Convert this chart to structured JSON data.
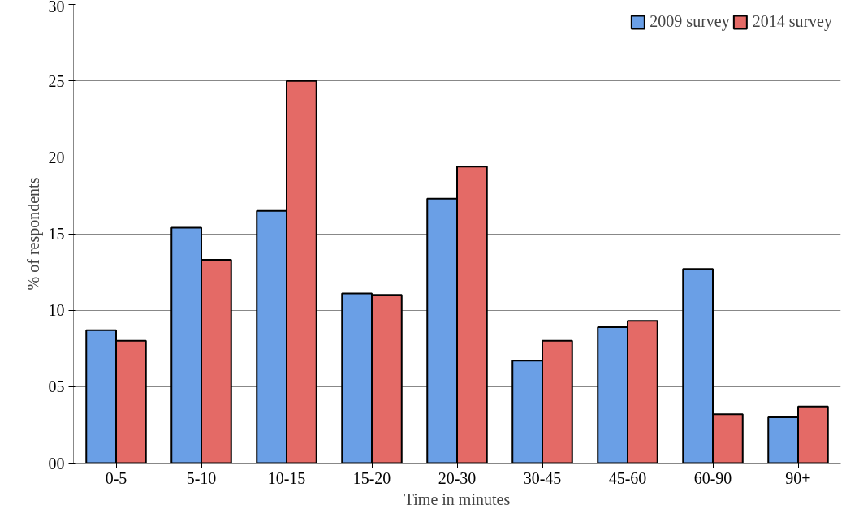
{
  "chart_data": {
    "type": "bar",
    "xlabel": "Time in minutes",
    "ylabel": "% of respondents",
    "categories": [
      "0-5",
      "5-10",
      "10-15",
      "15-20",
      "20-30",
      "30-45",
      "45-60",
      "60-90",
      "90+"
    ],
    "series": [
      {
        "name": "2009 survey",
        "color": "#6a9fe6",
        "values": [
          8.7,
          15.4,
          16.5,
          11.1,
          17.3,
          6.7,
          8.9,
          12.7,
          3.0
        ]
      },
      {
        "name": "2014 survey",
        "color": "#e46a66",
        "values": [
          8.0,
          13.3,
          25.0,
          11.0,
          19.4,
          8.0,
          9.3,
          3.2,
          3.7
        ]
      }
    ],
    "ylim": [
      0,
      30
    ],
    "yticks": [
      {
        "value": 0,
        "label": "00"
      },
      {
        "value": 5,
        "label": "05"
      },
      10,
      15,
      20,
      25,
      30
    ],
    "grid": "y",
    "legend": "top right"
  }
}
